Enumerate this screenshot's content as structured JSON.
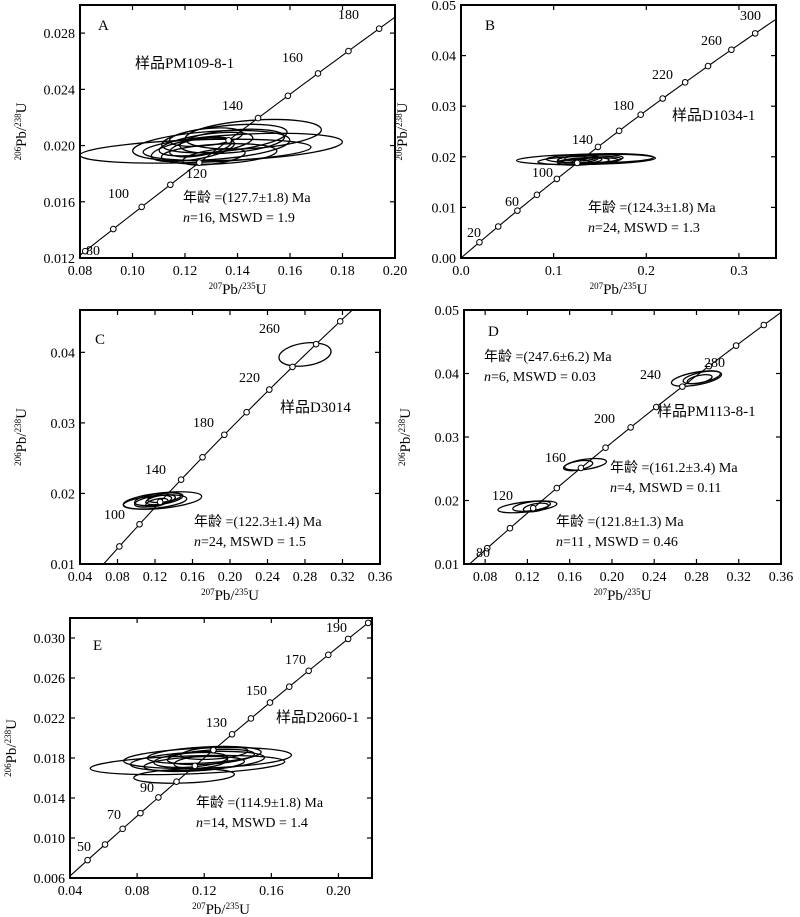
{
  "chart_data": [
    {
      "type": "scatter",
      "panel": "A",
      "sample": "样品PM109-8-1",
      "xlabel": {
        "pre": "207",
        "base": "Pb/",
        "pre2": "235",
        "post": "U"
      },
      "ylabel": {
        "pre": "206",
        "base": "Pb/",
        "pre2": "238",
        "post": "U"
      },
      "xlim": [
        0.08,
        0.2
      ],
      "ylim": [
        0.012,
        0.03
      ],
      "xticks": [
        0.08,
        0.1,
        0.12,
        0.14,
        0.16,
        0.18,
        0.2
      ],
      "xticklabels": [
        "0.08",
        "0.10",
        "0.12",
        "0.14",
        "0.16",
        "0.18",
        "0.20"
      ],
      "yticks": [
        0.012,
        0.016,
        0.02,
        0.024,
        0.028
      ],
      "yticklabels": [
        "0.012",
        "0.016",
        "0.020",
        "0.024",
        "0.028"
      ],
      "concordia_ages": [
        80,
        100,
        120,
        140,
        160,
        180
      ],
      "concordia_markers": [
        80,
        90,
        100,
        110,
        120,
        130,
        140,
        150,
        160,
        170,
        180,
        190
      ],
      "ellipses": [
        {
          "x": 0.13,
          "y": 0.02,
          "rx": 0.03,
          "ry": 0.001,
          "rot": 4
        },
        {
          "x": 0.142,
          "y": 0.0199,
          "rx": 0.038,
          "ry": 0.0009,
          "rot": 3
        },
        {
          "x": 0.124,
          "y": 0.0196,
          "rx": 0.044,
          "ry": 0.0008,
          "rot": 2
        },
        {
          "x": 0.135,
          "y": 0.0205,
          "rx": 0.024,
          "ry": 0.0009,
          "rot": 6
        },
        {
          "x": 0.128,
          "y": 0.0201,
          "rx": 0.018,
          "ry": 0.0007,
          "rot": 8
        },
        {
          "x": 0.138,
          "y": 0.0203,
          "rx": 0.02,
          "ry": 0.0008,
          "rot": 5
        },
        {
          "x": 0.123,
          "y": 0.0197,
          "rx": 0.016,
          "ry": 0.0007,
          "rot": 9
        },
        {
          "x": 0.133,
          "y": 0.0194,
          "rx": 0.022,
          "ry": 0.0007,
          "rot": 3
        },
        {
          "x": 0.126,
          "y": 0.0199,
          "rx": 0.012,
          "ry": 0.0006,
          "rot": 10
        },
        {
          "x": 0.146,
          "y": 0.0208,
          "rx": 0.026,
          "ry": 0.001,
          "rot": 4
        },
        {
          "x": 0.131,
          "y": 0.0192,
          "rx": 0.012,
          "ry": 0.0005,
          "rot": 8
        },
        {
          "x": 0.128,
          "y": 0.0206,
          "rx": 0.014,
          "ry": 0.0006,
          "rot": 6
        }
      ],
      "annotations": {
        "age": "年龄 =(127.7±1.8) Ma",
        "n_prefix": "n",
        "stats": "=16,  MSWD = 1.9"
      }
    },
    {
      "type": "scatter",
      "panel": "B",
      "sample": "样品D1034-1",
      "xlabel": {
        "pre": "207",
        "base": "Pb/",
        "pre2": "235",
        "post": "U"
      },
      "ylabel": {
        "pre": "206",
        "base": "Pb/",
        "pre2": "238",
        "post": "U"
      },
      "xlim": [
        0.0,
        0.34
      ],
      "ylim": [
        0.0,
        0.05
      ],
      "xticks": [
        0.0,
        0.1,
        0.2,
        0.3
      ],
      "xticklabels": [
        "0.0",
        "0.1",
        "0.2",
        "0.3"
      ],
      "yticks": [
        0.0,
        0.01,
        0.02,
        0.03,
        0.04,
        0.05
      ],
      "yticklabels": [
        "0.00",
        "0.01",
        "0.02",
        "0.03",
        "0.04",
        "0.05"
      ],
      "concordia_ages": [
        20,
        60,
        100,
        140,
        180,
        220,
        260,
        300
      ],
      "concordia_markers": [
        20,
        40,
        60,
        80,
        100,
        120,
        140,
        160,
        180,
        200,
        220,
        240,
        260,
        280,
        300
      ],
      "ellipses": [
        {
          "x": 0.135,
          "y": 0.0195,
          "rx": 0.075,
          "ry": 0.001,
          "rot": 1
        },
        {
          "x": 0.15,
          "y": 0.0197,
          "rx": 0.058,
          "ry": 0.0009,
          "rot": 1
        },
        {
          "x": 0.128,
          "y": 0.0193,
          "rx": 0.045,
          "ry": 0.0008,
          "rot": 2
        },
        {
          "x": 0.14,
          "y": 0.0196,
          "rx": 0.035,
          "ry": 0.0008,
          "rot": 2
        },
        {
          "x": 0.132,
          "y": 0.0191,
          "rx": 0.028,
          "ry": 0.0007,
          "rot": 3
        },
        {
          "x": 0.126,
          "y": 0.0195,
          "rx": 0.022,
          "ry": 0.0007,
          "rot": 3
        },
        {
          "x": 0.145,
          "y": 0.0192,
          "rx": 0.025,
          "ry": 0.0006,
          "rot": 2
        },
        {
          "x": 0.13,
          "y": 0.0198,
          "rx": 0.018,
          "ry": 0.0006,
          "rot": 4
        },
        {
          "x": 0.138,
          "y": 0.0193,
          "rx": 0.014,
          "ry": 0.0005,
          "rot": 4
        },
        {
          "x": 0.122,
          "y": 0.019,
          "rx": 0.016,
          "ry": 0.0005,
          "rot": 3
        }
      ],
      "annotations": {
        "age": "年龄 =(124.3±1.8) Ma",
        "n_prefix": "n",
        "stats": "=24,  MSWD = 1.3"
      }
    },
    {
      "type": "scatter",
      "panel": "C",
      "sample": "样品D3014",
      "xlabel": {
        "pre": "207",
        "base": "Pb/",
        "pre2": "235",
        "post": "U"
      },
      "ylabel": {
        "pre": "206",
        "base": "Pb/",
        "pre2": "238",
        "post": "U"
      },
      "xlim": [
        0.04,
        0.36
      ],
      "ylim": [
        0.01,
        0.046
      ],
      "xticks": [
        0.04,
        0.08,
        0.12,
        0.16,
        0.2,
        0.24,
        0.28,
        0.32,
        0.36
      ],
      "xticklabels": [
        "0.04",
        "0.08",
        "0.12",
        "0.16",
        "0.20",
        "0.24",
        "0.28",
        "0.32",
        "0.36"
      ],
      "yticks": [
        0.01,
        0.02,
        0.03,
        0.04
      ],
      "yticklabels": [
        "0.01",
        "0.02",
        "0.03",
        "0.04"
      ],
      "concordia_ages": [
        100,
        140,
        180,
        220,
        260
      ],
      "concordia_markers": [
        80,
        100,
        120,
        140,
        160,
        180,
        200,
        220,
        240,
        260,
        280,
        300
      ],
      "ellipses": [
        {
          "x": 0.128,
          "y": 0.019,
          "rx": 0.042,
          "ry": 0.0011,
          "rot": 6
        },
        {
          "x": 0.12,
          "y": 0.0188,
          "rx": 0.034,
          "ry": 0.0009,
          "rot": 6
        },
        {
          "x": 0.124,
          "y": 0.0192,
          "rx": 0.026,
          "ry": 0.0008,
          "rot": 8
        },
        {
          "x": 0.118,
          "y": 0.0189,
          "rx": 0.02,
          "ry": 0.0007,
          "rot": 10
        },
        {
          "x": 0.126,
          "y": 0.0191,
          "rx": 0.016,
          "ry": 0.0006,
          "rot": 10
        },
        {
          "x": 0.122,
          "y": 0.0187,
          "rx": 0.012,
          "ry": 0.0005,
          "rot": 12
        },
        {
          "x": 0.13,
          "y": 0.0194,
          "rx": 0.018,
          "ry": 0.0006,
          "rot": 8
        },
        {
          "x": 0.28,
          "y": 0.0397,
          "rx": 0.028,
          "ry": 0.0016,
          "rot": 8
        }
      ],
      "annotations": {
        "age": "年龄 =(122.3±1.4) Ma",
        "n_prefix": "n",
        "stats": "=24,  MSWD = 1.5"
      }
    },
    {
      "type": "scatter",
      "panel": "D",
      "sample": "样品PM113-8-1",
      "xlabel": {
        "pre": "207",
        "base": "Pb/",
        "pre2": "235",
        "post": "U"
      },
      "ylabel": {
        "pre": "206",
        "base": "Pb/",
        "pre2": "238",
        "post": "U"
      },
      "xlim": [
        0.06,
        0.36
      ],
      "ylim": [
        0.01,
        0.05
      ],
      "xticks": [
        0.08,
        0.12,
        0.16,
        0.2,
        0.24,
        0.28,
        0.32,
        0.36
      ],
      "xticklabels": [
        "0.08",
        "0.12",
        "0.16",
        "0.20",
        "0.24",
        "0.28",
        "0.32",
        "0.36"
      ],
      "yticks": [
        0.01,
        0.02,
        0.03,
        0.04,
        0.05
      ],
      "yticklabels": [
        "0.01",
        "0.02",
        "0.03",
        "0.04",
        "0.05"
      ],
      "concordia_ages": [
        80,
        120,
        160,
        200,
        240,
        280
      ],
      "concordia_markers": [
        80,
        100,
        120,
        140,
        160,
        180,
        200,
        220,
        240,
        260,
        280,
        300
      ],
      "ellipses": [
        {
          "x": 0.12,
          "y": 0.019,
          "rx": 0.028,
          "ry": 0.0008,
          "rot": 6
        },
        {
          "x": 0.124,
          "y": 0.0191,
          "rx": 0.018,
          "ry": 0.0007,
          "rot": 8
        },
        {
          "x": 0.128,
          "y": 0.0189,
          "rx": 0.012,
          "ry": 0.0006,
          "rot": 10
        },
        {
          "x": 0.168,
          "y": 0.0255,
          "rx": 0.014,
          "ry": 0.0007,
          "rot": 10
        },
        {
          "x": 0.175,
          "y": 0.0257,
          "rx": 0.02,
          "ry": 0.0008,
          "rot": 8
        },
        {
          "x": 0.28,
          "y": 0.0392,
          "rx": 0.024,
          "ry": 0.001,
          "rot": 10
        },
        {
          "x": 0.285,
          "y": 0.0394,
          "rx": 0.018,
          "ry": 0.0008,
          "rot": 12
        },
        {
          "x": 0.283,
          "y": 0.0391,
          "rx": 0.012,
          "ry": 0.0006,
          "rot": 12
        }
      ],
      "annotations": {
        "age1": "年龄 =(247.6±6.2) Ma",
        "n1_prefix": "n",
        "stats1": "=6,  MSWD = 0.03",
        "age2": "年龄 =(161.2±3.4) Ma",
        "n2_prefix": "n",
        "stats2": "=4,  MSWD = 0.11",
        "age3": "年龄 =(121.8±1.3) Ma",
        "n3_prefix": "n",
        "stats3": "=11 ,  MSWD = 0.46"
      }
    },
    {
      "type": "scatter",
      "panel": "E",
      "sample": "样品D2060-1",
      "xlabel": {
        "pre": "207",
        "base": "Pb/",
        "pre2": "235",
        "post": "U"
      },
      "ylabel": {
        "pre": "206",
        "base": "Pb/",
        "pre2": "238",
        "post": "U"
      },
      "xlim": [
        0.04,
        0.22
      ],
      "ylim": [
        0.006,
        0.032
      ],
      "xticks": [
        0.04,
        0.08,
        0.12,
        0.16,
        0.2
      ],
      "xticklabels": [
        "0.04",
        "0.08",
        "0.12",
        "0.16",
        "0.20"
      ],
      "yticks": [
        0.006,
        0.01,
        0.014,
        0.018,
        0.022,
        0.026,
        0.03
      ],
      "yticklabels": [
        "0.006",
        "0.010",
        "0.014",
        "0.018",
        "0.022",
        "0.026",
        "0.030"
      ],
      "concordia_ages": [
        50,
        70,
        90,
        130,
        150,
        170,
        190
      ],
      "concordia_markers": [
        50,
        60,
        70,
        80,
        90,
        100,
        110,
        120,
        130,
        140,
        150,
        160,
        170,
        180,
        190,
        200
      ],
      "ellipses": [
        {
          "x": 0.11,
          "y": 0.0173,
          "rx": 0.058,
          "ry": 0.0009,
          "rot": 2
        },
        {
          "x": 0.122,
          "y": 0.018,
          "rx": 0.05,
          "ry": 0.001,
          "rot": 2
        },
        {
          "x": 0.116,
          "y": 0.0177,
          "rx": 0.04,
          "ry": 0.0009,
          "rot": 3
        },
        {
          "x": 0.12,
          "y": 0.0183,
          "rx": 0.034,
          "ry": 0.0008,
          "rot": 3
        },
        {
          "x": 0.114,
          "y": 0.0174,
          "rx": 0.03,
          "ry": 0.0007,
          "rot": 3
        },
        {
          "x": 0.124,
          "y": 0.0181,
          "rx": 0.026,
          "ry": 0.0007,
          "rot": 4
        },
        {
          "x": 0.112,
          "y": 0.0178,
          "rx": 0.022,
          "ry": 0.0007,
          "rot": 4
        },
        {
          "x": 0.118,
          "y": 0.0176,
          "rx": 0.016,
          "ry": 0.0006,
          "rot": 5
        },
        {
          "x": 0.126,
          "y": 0.0185,
          "rx": 0.02,
          "ry": 0.0006,
          "rot": 4
        },
        {
          "x": 0.108,
          "y": 0.0162,
          "rx": 0.03,
          "ry": 0.0007,
          "rot": 2
        }
      ],
      "annotations": {
        "age": "年龄 =(114.9±1.8) Ma",
        "n_prefix": "n",
        "stats": "=14,  MSWD = 1.4"
      }
    }
  ]
}
